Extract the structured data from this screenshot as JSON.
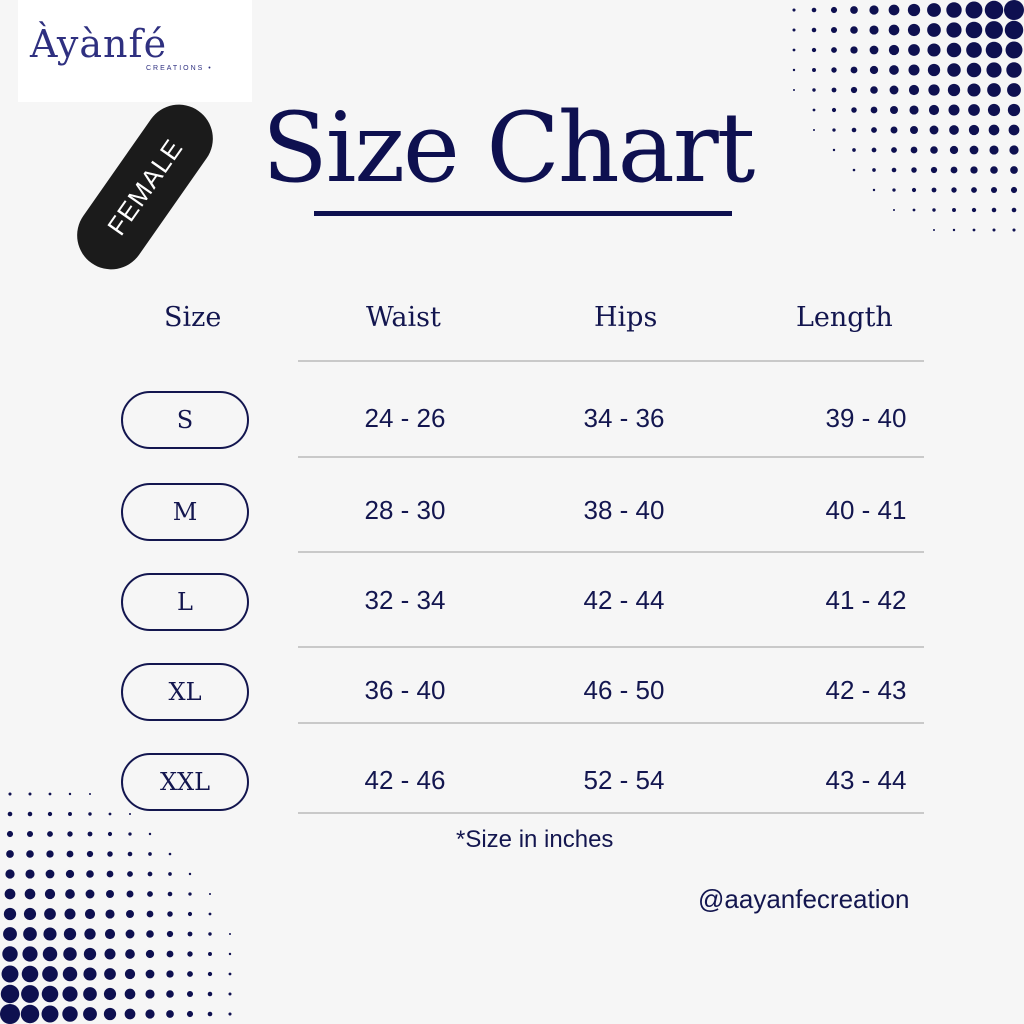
{
  "brand": {
    "name": "Àyànfé",
    "subtitle": "CREATIONS •"
  },
  "badge": "FEMALE",
  "title": "Size Chart",
  "columns": [
    "Size",
    "Waist",
    "Hips",
    "Length"
  ],
  "rows": [
    {
      "size": "S",
      "waist": "24 - 26",
      "hips": "34 - 36",
      "length": "39 - 40"
    },
    {
      "size": "M",
      "waist": "28 - 30",
      "hips": "38 - 40",
      "length": "40 - 41"
    },
    {
      "size": "L",
      "waist": "32 - 34",
      "hips": "42 - 44",
      "length": "41 - 42"
    },
    {
      "size": "XL",
      "waist": "36 - 40",
      "hips": "46 - 50",
      "length": "42 - 43"
    },
    {
      "size": "XXL",
      "waist": "42 - 46",
      "hips": "52 - 54",
      "length": "43 - 44"
    }
  ],
  "note": "*Size in inches",
  "handle": "@aayanfecreation",
  "colors": {
    "navy": "#0e1050",
    "background": "#f6f6f6",
    "badge": "#1b1b1b"
  }
}
